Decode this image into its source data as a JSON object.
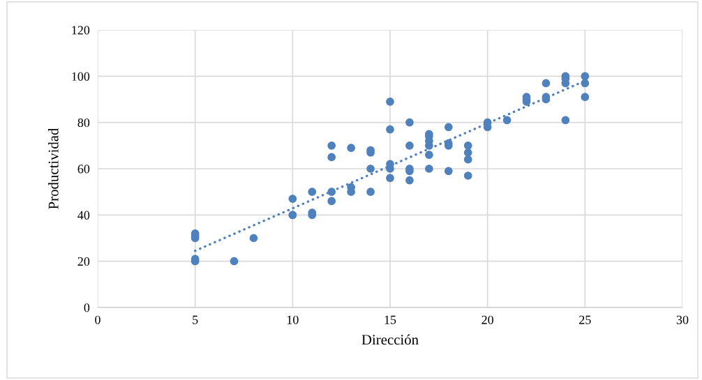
{
  "chart_data": {
    "type": "scatter",
    "xlabel": "Dirección",
    "ylabel": "Productividad",
    "xlim": [
      0,
      30
    ],
    "xticks": [
      0,
      5,
      10,
      15,
      20,
      25,
      30
    ],
    "ylim": [
      0,
      120
    ],
    "yticks": [
      0,
      20,
      40,
      60,
      80,
      100,
      120
    ],
    "grid": true,
    "marker": "circle",
    "series": [
      {
        "color": "#4f81bd",
        "x": [
          5,
          5,
          5,
          5,
          5,
          7,
          8,
          10,
          10,
          10,
          11,
          11,
          11,
          12,
          12,
          12,
          12,
          13,
          13,
          13,
          14,
          14,
          14,
          14,
          15,
          15,
          15,
          15,
          15,
          16,
          16,
          16,
          16,
          16,
          17,
          17,
          17,
          17,
          17,
          17,
          18,
          18,
          18,
          18,
          19,
          19,
          19,
          19,
          20,
          20,
          21,
          22,
          22,
          22,
          23,
          23,
          23,
          24,
          24,
          24,
          24,
          25,
          25,
          25
        ],
        "values": [
          20,
          21,
          30,
          31,
          32,
          20,
          30,
          40,
          40,
          47,
          40,
          41,
          50,
          46,
          50,
          65,
          70,
          50,
          52,
          69,
          50,
          60,
          67,
          68,
          56,
          60,
          62,
          77,
          89,
          55,
          59,
          60,
          70,
          80,
          60,
          66,
          70,
          72,
          74,
          75,
          59,
          70,
          71,
          78,
          57,
          64,
          67,
          70,
          78,
          80,
          81,
          89,
          90,
          91,
          90,
          91,
          97,
          81,
          97,
          99,
          100,
          91,
          97,
          100
        ]
      },
      {
        "color": "#4f81bd",
        "type": "line",
        "line_style": "dotted",
        "marker": "none",
        "x": [
          5,
          25
        ],
        "values": [
          24.5,
          98
        ]
      }
    ]
  }
}
